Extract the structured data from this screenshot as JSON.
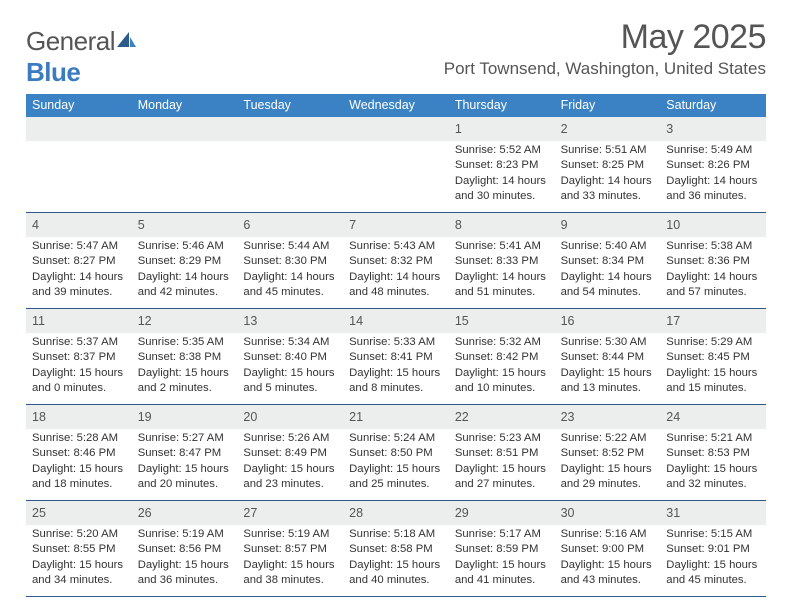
{
  "logo": {
    "text1": "General",
    "text2": "Blue"
  },
  "title": "May 2025",
  "location": "Port Townsend, Washington, United States",
  "colors": {
    "header_bg": "#3b82c4",
    "header_text": "#ffffff",
    "daynum_bg": "#eceded",
    "border": "#2e5a8a",
    "text": "#333333",
    "muted": "#555555"
  },
  "day_labels": [
    "Sunday",
    "Monday",
    "Tuesday",
    "Wednesday",
    "Thursday",
    "Friday",
    "Saturday"
  ],
  "weeks": [
    [
      {},
      {},
      {},
      {},
      {
        "n": "1",
        "sr": "5:52 AM",
        "ss": "8:23 PM",
        "d1": "14 hours",
        "d2": "and 30 minutes."
      },
      {
        "n": "2",
        "sr": "5:51 AM",
        "ss": "8:25 PM",
        "d1": "14 hours",
        "d2": "and 33 minutes."
      },
      {
        "n": "3",
        "sr": "5:49 AM",
        "ss": "8:26 PM",
        "d1": "14 hours",
        "d2": "and 36 minutes."
      }
    ],
    [
      {
        "n": "4",
        "sr": "5:47 AM",
        "ss": "8:27 PM",
        "d1": "14 hours",
        "d2": "and 39 minutes."
      },
      {
        "n": "5",
        "sr": "5:46 AM",
        "ss": "8:29 PM",
        "d1": "14 hours",
        "d2": "and 42 minutes."
      },
      {
        "n": "6",
        "sr": "5:44 AM",
        "ss": "8:30 PM",
        "d1": "14 hours",
        "d2": "and 45 minutes."
      },
      {
        "n": "7",
        "sr": "5:43 AM",
        "ss": "8:32 PM",
        "d1": "14 hours",
        "d2": "and 48 minutes."
      },
      {
        "n": "8",
        "sr": "5:41 AM",
        "ss": "8:33 PM",
        "d1": "14 hours",
        "d2": "and 51 minutes."
      },
      {
        "n": "9",
        "sr": "5:40 AM",
        "ss": "8:34 PM",
        "d1": "14 hours",
        "d2": "and 54 minutes."
      },
      {
        "n": "10",
        "sr": "5:38 AM",
        "ss": "8:36 PM",
        "d1": "14 hours",
        "d2": "and 57 minutes."
      }
    ],
    [
      {
        "n": "11",
        "sr": "5:37 AM",
        "ss": "8:37 PM",
        "d1": "15 hours",
        "d2": "and 0 minutes."
      },
      {
        "n": "12",
        "sr": "5:35 AM",
        "ss": "8:38 PM",
        "d1": "15 hours",
        "d2": "and 2 minutes."
      },
      {
        "n": "13",
        "sr": "5:34 AM",
        "ss": "8:40 PM",
        "d1": "15 hours",
        "d2": "and 5 minutes."
      },
      {
        "n": "14",
        "sr": "5:33 AM",
        "ss": "8:41 PM",
        "d1": "15 hours",
        "d2": "and 8 minutes."
      },
      {
        "n": "15",
        "sr": "5:32 AM",
        "ss": "8:42 PM",
        "d1": "15 hours",
        "d2": "and 10 minutes."
      },
      {
        "n": "16",
        "sr": "5:30 AM",
        "ss": "8:44 PM",
        "d1": "15 hours",
        "d2": "and 13 minutes."
      },
      {
        "n": "17",
        "sr": "5:29 AM",
        "ss": "8:45 PM",
        "d1": "15 hours",
        "d2": "and 15 minutes."
      }
    ],
    [
      {
        "n": "18",
        "sr": "5:28 AM",
        "ss": "8:46 PM",
        "d1": "15 hours",
        "d2": "and 18 minutes."
      },
      {
        "n": "19",
        "sr": "5:27 AM",
        "ss": "8:47 PM",
        "d1": "15 hours",
        "d2": "and 20 minutes."
      },
      {
        "n": "20",
        "sr": "5:26 AM",
        "ss": "8:49 PM",
        "d1": "15 hours",
        "d2": "and 23 minutes."
      },
      {
        "n": "21",
        "sr": "5:24 AM",
        "ss": "8:50 PM",
        "d1": "15 hours",
        "d2": "and 25 minutes."
      },
      {
        "n": "22",
        "sr": "5:23 AM",
        "ss": "8:51 PM",
        "d1": "15 hours",
        "d2": "and 27 minutes."
      },
      {
        "n": "23",
        "sr": "5:22 AM",
        "ss": "8:52 PM",
        "d1": "15 hours",
        "d2": "and 29 minutes."
      },
      {
        "n": "24",
        "sr": "5:21 AM",
        "ss": "8:53 PM",
        "d1": "15 hours",
        "d2": "and 32 minutes."
      }
    ],
    [
      {
        "n": "25",
        "sr": "5:20 AM",
        "ss": "8:55 PM",
        "d1": "15 hours",
        "d2": "and 34 minutes."
      },
      {
        "n": "26",
        "sr": "5:19 AM",
        "ss": "8:56 PM",
        "d1": "15 hours",
        "d2": "and 36 minutes."
      },
      {
        "n": "27",
        "sr": "5:19 AM",
        "ss": "8:57 PM",
        "d1": "15 hours",
        "d2": "and 38 minutes."
      },
      {
        "n": "28",
        "sr": "5:18 AM",
        "ss": "8:58 PM",
        "d1": "15 hours",
        "d2": "and 40 minutes."
      },
      {
        "n": "29",
        "sr": "5:17 AM",
        "ss": "8:59 PM",
        "d1": "15 hours",
        "d2": "and 41 minutes."
      },
      {
        "n": "30",
        "sr": "5:16 AM",
        "ss": "9:00 PM",
        "d1": "15 hours",
        "d2": "and 43 minutes."
      },
      {
        "n": "31",
        "sr": "5:15 AM",
        "ss": "9:01 PM",
        "d1": "15 hours",
        "d2": "and 45 minutes."
      }
    ]
  ],
  "labels": {
    "sunrise": "Sunrise:",
    "sunset": "Sunset:",
    "daylight": "Daylight:"
  }
}
